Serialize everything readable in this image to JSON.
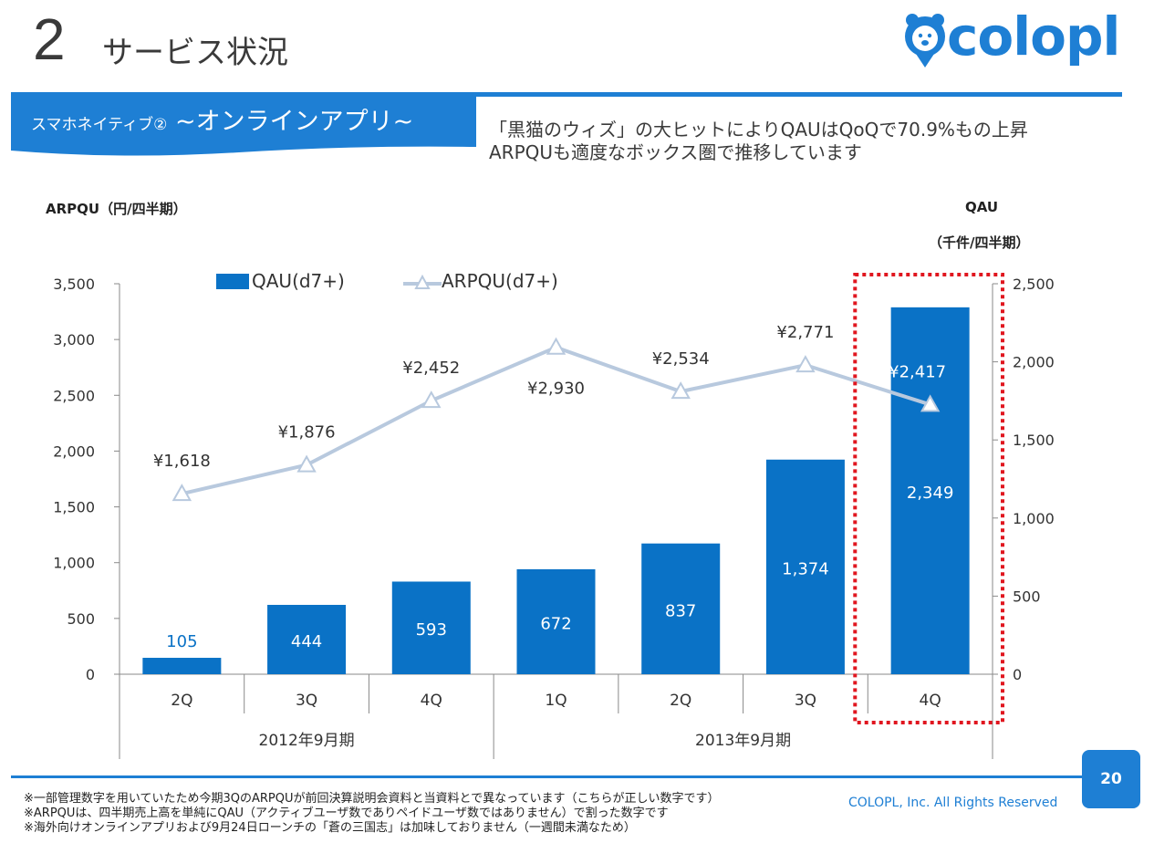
{
  "header": {
    "slide_number": "2",
    "title": "サービス状況",
    "logo_text": "colopl",
    "logo_icon": "bear-pin-icon"
  },
  "section": {
    "label_prefix": "スマホネイティブ②",
    "label_main": " ~オンラインアプリ~"
  },
  "headline": {
    "line1": "「黒猫のウィズ」の大ヒットによりQAUはQoQで70.9%もの上昇",
    "line2": "ARPQUも適度なボックス圏で推移しています"
  },
  "axes": {
    "left_title": "ARPQU（円/四半期）",
    "right_title": "QAU",
    "right_unit": "（千件/四半期）"
  },
  "chart_data": {
    "type": "bar",
    "categories": [
      "2Q",
      "3Q",
      "4Q",
      "1Q",
      "2Q",
      "3Q",
      "4Q"
    ],
    "category_groups": [
      {
        "label": "2012年9月期",
        "span": 3
      },
      {
        "label": "2013年9月期",
        "span": 4
      }
    ],
    "series": [
      {
        "name": "QAU(d7+)",
        "type": "bar",
        "axis": "right",
        "values": [
          105,
          444,
          593,
          672,
          837,
          1374,
          2349
        ],
        "labels": [
          "105",
          "444",
          "593",
          "672",
          "837",
          "1,374",
          "2,349"
        ]
      },
      {
        "name": "ARPQU(d7+)",
        "type": "line",
        "axis": "left",
        "values": [
          1618,
          1876,
          2452,
          2930,
          2534,
          2771,
          2417
        ],
        "labels": [
          "¥1,618",
          "¥1,876",
          "¥2,452",
          "¥2,930",
          "¥2,534",
          "¥2,771",
          "¥2,417"
        ]
      }
    ],
    "y_left": {
      "min": 0,
      "max": 3500,
      "ticks": [
        "0",
        "500",
        "1,000",
        "1,500",
        "2,000",
        "2,500",
        "3,000",
        "3,500"
      ]
    },
    "y_right": {
      "min": 0,
      "max": 2500,
      "ticks": [
        "0",
        "500",
        "1,000",
        "1,500",
        "2,000",
        "2,500"
      ]
    },
    "highlight_index": 6,
    "legend_position": "top",
    "colors": {
      "bar": "#0a72c6",
      "line": "#b8c9de",
      "highlight": "#e0161f"
    }
  },
  "footer": {
    "notes": [
      "※一部管理数字を用いていたため今期3QのARPQUが前回決算説明会資料と当資料とで異なっています（こちらが正しい数字です）",
      "※ARPQUは、四半期売上高を単純にQAU（アクティブユーザ数でありペイドユーザ数ではありません）で割った数字です",
      "※海外向けオンラインアプリおよび9月24日ローンチの「蒼の三国志」は加味しておりません（一週間未満なため）"
    ],
    "copyright": "COLOPL, Inc. All Rights Reserved",
    "page": "20"
  }
}
